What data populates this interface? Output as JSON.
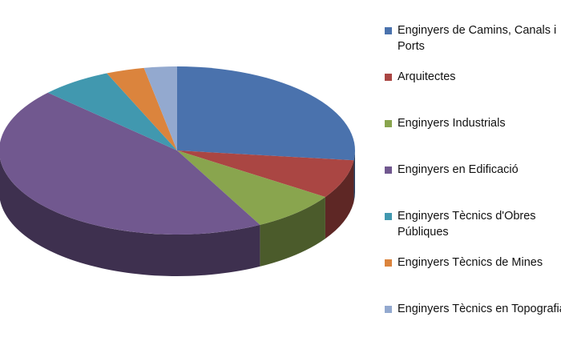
{
  "chart_data": {
    "type": "pie3d",
    "categories": [
      "Enginyers de Camins, Canals i Ports",
      "Arquitectes",
      "Enginyers Industrials",
      "Enginyers en Edificació",
      "Enginyers Tècnics d'Obres Públiques",
      "Enginyers Tècnics de Mines",
      "Enginyers Tècnics en Topografia"
    ],
    "values": [
      27,
      7.5,
      8,
      45,
      6.5,
      3.5,
      3
    ],
    "colors": [
      "#4a72ad",
      "#aa4643",
      "#89a54e",
      "#71588f",
      "#4198af",
      "#db843d",
      "#93a9cf"
    ],
    "legend": "right"
  }
}
